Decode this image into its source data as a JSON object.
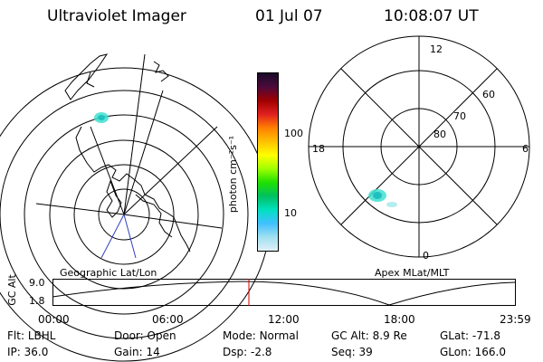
{
  "header": {
    "instrument": "Ultraviolet Imager",
    "date": "01 Jul 07",
    "time": "10:08:07 UT"
  },
  "colorbar": {
    "unit_label": "photon cm⁻²s⁻¹",
    "ticks": [
      "100",
      "10"
    ],
    "colors": [
      "#1a0a2a",
      "#4b0a3a",
      "#a00000",
      "#e02020",
      "#ff8000",
      "#ffc000",
      "#ffff00",
      "#a0ff00",
      "#20e000",
      "#00c060",
      "#00e0c0",
      "#40c0ff",
      "#a0e0f0",
      "#e0f0f8"
    ]
  },
  "left_map": {
    "label": "Geographic Lat/Lon"
  },
  "right_map": {
    "label": "Apex MLat/MLT",
    "mlt_labels": {
      "top": "12",
      "left": "18",
      "right": "6",
      "bottom": "0"
    },
    "lat_labels": [
      "60",
      "70",
      "80"
    ]
  },
  "altitude_plot": {
    "axis_label": "GC Alt",
    "y_ticks": [
      "9.0",
      "1.8"
    ],
    "x_ticks": [
      "00:00",
      "06:00",
      "12:00",
      "18:00",
      "23:59"
    ]
  },
  "status": {
    "row1": [
      {
        "key": "Flt:",
        "value": "LBHL"
      },
      {
        "key": "Door:",
        "value": "Open"
      },
      {
        "key": "Mode:",
        "value": "Normal"
      },
      {
        "key": "GC Alt:",
        "value": "8.9 Re"
      },
      {
        "key": "GLat:",
        "value": "-71.8"
      }
    ],
    "row2": [
      {
        "key": "IP:",
        "value": "36.0"
      },
      {
        "key": "Gain:",
        "value": "14"
      },
      {
        "key": "Dsp:",
        "value": "-2.8"
      },
      {
        "key": "Seq:",
        "value": "39"
      },
      {
        "key": "GLon:",
        "value": "166.0"
      }
    ]
  }
}
